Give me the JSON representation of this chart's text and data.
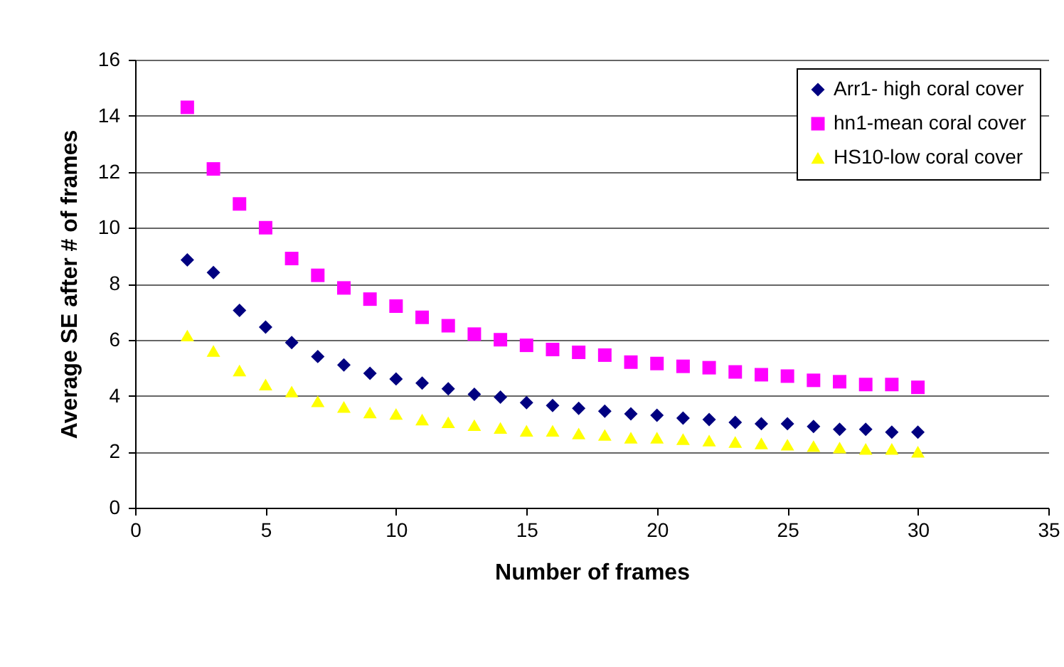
{
  "chart_data": {
    "type": "scatter",
    "xlabel": "Number of frames",
    "ylabel": "Average SE after # of frames",
    "x": [
      2,
      3,
      4,
      5,
      6,
      7,
      8,
      9,
      10,
      11,
      12,
      13,
      14,
      15,
      16,
      17,
      18,
      19,
      20,
      21,
      22,
      23,
      24,
      25,
      26,
      27,
      28,
      29,
      30
    ],
    "series": [
      {
        "name": "Arr1- high coral cover",
        "color": "#000080",
        "marker": "diamond",
        "values": [
          8.85,
          8.4,
          7.05,
          6.45,
          5.9,
          5.4,
          5.1,
          4.8,
          4.6,
          4.45,
          4.25,
          4.05,
          3.95,
          3.75,
          3.65,
          3.55,
          3.45,
          3.35,
          3.3,
          3.2,
          3.15,
          3.05,
          3.0,
          3.0,
          2.9,
          2.8,
          2.8,
          2.7,
          2.7
        ]
      },
      {
        "name": "hn1-mean coral cover",
        "color": "#ff00ff",
        "marker": "square",
        "values": [
          14.3,
          12.1,
          10.85,
          10.0,
          8.9,
          8.3,
          7.85,
          7.45,
          7.2,
          6.8,
          6.5,
          6.2,
          6.0,
          5.8,
          5.65,
          5.55,
          5.45,
          5.2,
          5.15,
          5.05,
          5.0,
          4.85,
          4.75,
          4.7,
          4.55,
          4.5,
          4.4,
          4.4,
          4.3
        ]
      },
      {
        "name": "HS10-low  coral cover",
        "color": "#ffff00",
        "marker": "triangle",
        "values": [
          6.15,
          5.6,
          4.9,
          4.4,
          4.15,
          3.8,
          3.6,
          3.4,
          3.35,
          3.15,
          3.05,
          2.95,
          2.85,
          2.75,
          2.75,
          2.65,
          2.6,
          2.5,
          2.5,
          2.45,
          2.4,
          2.35,
          2.3,
          2.25,
          2.2,
          2.15,
          2.1,
          2.1,
          2.0
        ]
      }
    ],
    "xlim": [
      0,
      35
    ],
    "xticks": [
      0,
      5,
      10,
      15,
      20,
      25,
      30,
      35
    ],
    "ylim": [
      0,
      16
    ],
    "yticks": [
      0,
      2,
      4,
      6,
      8,
      10,
      12,
      14,
      16
    ],
    "grid": "y",
    "legend": "top right"
  }
}
